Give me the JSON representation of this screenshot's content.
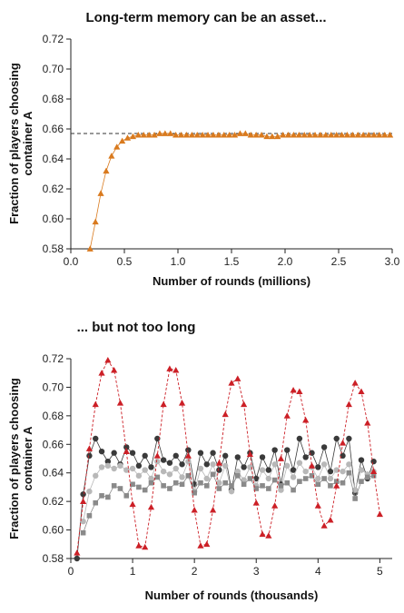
{
  "colors": {
    "orange": "#d97a1e",
    "red": "#cc1f26",
    "dark": "#3a3a3a",
    "light": "#b8b8b8",
    "mid": "#8a8a8a",
    "reference": "#333333"
  },
  "chart_data": [
    {
      "type": "line",
      "title": "Long-term memory can be an asset...",
      "xlabel": "Number of rounds (millions)",
      "ylabel": "Fraction of players choosing container A",
      "xlim": [
        0.0,
        3.0
      ],
      "ylim": [
        0.58,
        0.72
      ],
      "x_ticks": [
        "0.0",
        "0.5",
        "1.0",
        "1.5",
        "2.0",
        "2.5",
        "3.0"
      ],
      "y_ticks": [
        "0.58",
        "0.60",
        "0.62",
        "0.64",
        "0.66",
        "0.68",
        "0.70",
        "0.72"
      ],
      "x_tick_values": [
        0,
        0.5,
        1.0,
        1.5,
        2.0,
        2.5,
        3.0
      ],
      "y_tick_values": [
        0.58,
        0.6,
        0.62,
        0.64,
        0.66,
        0.68,
        0.7,
        0.72
      ],
      "reference_line": {
        "y": 0.657,
        "style": "dashed"
      },
      "series": [
        {
          "marker": "triangle",
          "color": "#d97a1e",
          "x": [
            0.18,
            0.23,
            0.28,
            0.33,
            0.38,
            0.43,
            0.48,
            0.53,
            0.58,
            0.63,
            0.68,
            0.73,
            0.78,
            0.83,
            0.88,
            0.93,
            0.98,
            1.03,
            1.08,
            1.13,
            1.18,
            1.23,
            1.28,
            1.33,
            1.38,
            1.43,
            1.48,
            1.53,
            1.58,
            1.63,
            1.68,
            1.73,
            1.78,
            1.83,
            1.88,
            1.93,
            1.98,
            2.03,
            2.08,
            2.13,
            2.18,
            2.23,
            2.28,
            2.33,
            2.38,
            2.43,
            2.48,
            2.53,
            2.58,
            2.63,
            2.68,
            2.73,
            2.78,
            2.83,
            2.88,
            2.93,
            2.98
          ],
          "y": [
            0.58,
            0.598,
            0.617,
            0.632,
            0.642,
            0.648,
            0.652,
            0.654,
            0.655,
            0.656,
            0.656,
            0.656,
            0.656,
            0.657,
            0.657,
            0.657,
            0.656,
            0.656,
            0.656,
            0.656,
            0.656,
            0.656,
            0.656,
            0.656,
            0.656,
            0.656,
            0.656,
            0.656,
            0.657,
            0.657,
            0.656,
            0.656,
            0.656,
            0.655,
            0.655,
            0.655,
            0.656,
            0.656,
            0.656,
            0.656,
            0.656,
            0.656,
            0.656,
            0.656,
            0.656,
            0.656,
            0.656,
            0.656,
            0.656,
            0.656,
            0.656,
            0.656,
            0.656,
            0.656,
            0.656,
            0.656,
            0.656
          ]
        }
      ]
    },
    {
      "type": "line",
      "title": "... but not too long",
      "xlabel": "Number of rounds (thousands)",
      "ylabel": "Fraction of players choosing container A",
      "xlim": [
        0,
        5.2
      ],
      "ylim": [
        0.58,
        0.72
      ],
      "x_ticks": [
        "0",
        "1",
        "2",
        "3",
        "4",
        "5"
      ],
      "y_ticks": [
        "0.58",
        "0.60",
        "0.62",
        "0.64",
        "0.66",
        "0.68",
        "0.70",
        "0.72"
      ],
      "x_tick_values": [
        0,
        1,
        2,
        3,
        4,
        5
      ],
      "y_tick_values": [
        0.58,
        0.6,
        0.62,
        0.64,
        0.66,
        0.68,
        0.7,
        0.72
      ],
      "series": [
        {
          "marker": "triangle",
          "color": "#cc1f26",
          "line": "dashed",
          "x": [
            0.1,
            0.2,
            0.3,
            0.4,
            0.5,
            0.6,
            0.7,
            0.8,
            0.9,
            1.0,
            1.1,
            1.2,
            1.3,
            1.4,
            1.5,
            1.6,
            1.7,
            1.8,
            1.9,
            2.0,
            2.1,
            2.2,
            2.3,
            2.4,
            2.5,
            2.6,
            2.7,
            2.8,
            2.9,
            3.0,
            3.1,
            3.2,
            3.3,
            3.4,
            3.5,
            3.6,
            3.7,
            3.8,
            3.9,
            4.0,
            4.1,
            4.2,
            4.3,
            4.4,
            4.5,
            4.6,
            4.7,
            4.8,
            4.9,
            5.0
          ],
          "y": [
            0.584,
            0.62,
            0.657,
            0.688,
            0.71,
            0.719,
            0.712,
            0.689,
            0.655,
            0.618,
            0.589,
            0.588,
            0.616,
            0.652,
            0.688,
            0.713,
            0.712,
            0.689,
            0.652,
            0.614,
            0.589,
            0.59,
            0.614,
            0.647,
            0.681,
            0.703,
            0.706,
            0.688,
            0.653,
            0.619,
            0.597,
            0.596,
            0.617,
            0.65,
            0.68,
            0.698,
            0.697,
            0.677,
            0.645,
            0.617,
            0.603,
            0.607,
            0.631,
            0.661,
            0.688,
            0.703,
            0.697,
            0.675,
            0.641,
            0.611
          ]
        },
        {
          "marker": "circle",
          "color": "#3a3a3a",
          "line": "solid",
          "x": [
            0.1,
            0.2,
            0.3,
            0.4,
            0.5,
            0.6,
            0.7,
            0.8,
            0.9,
            1.0,
            1.1,
            1.2,
            1.3,
            1.4,
            1.5,
            1.6,
            1.7,
            1.8,
            1.9,
            2.0,
            2.1,
            2.2,
            2.3,
            2.4,
            2.5,
            2.6,
            2.7,
            2.8,
            2.9,
            3.0,
            3.1,
            3.2,
            3.3,
            3.4,
            3.5,
            3.6,
            3.7,
            3.8,
            3.9,
            4.0,
            4.1,
            4.2,
            4.3,
            4.4,
            4.5,
            4.6,
            4.7,
            4.8,
            4.9
          ],
          "y": [
            0.58,
            0.625,
            0.652,
            0.664,
            0.655,
            0.648,
            0.654,
            0.646,
            0.658,
            0.654,
            0.645,
            0.652,
            0.644,
            0.664,
            0.649,
            0.647,
            0.652,
            0.646,
            0.656,
            0.632,
            0.654,
            0.646,
            0.654,
            0.642,
            0.652,
            0.628,
            0.651,
            0.644,
            0.654,
            0.636,
            0.651,
            0.642,
            0.656,
            0.632,
            0.656,
            0.642,
            0.664,
            0.651,
            0.654,
            0.644,
            0.658,
            0.641,
            0.664,
            0.652,
            0.664,
            0.626,
            0.649,
            0.636,
            0.648
          ]
        },
        {
          "marker": "circle",
          "color": "#b8b8b8",
          "line": "solid",
          "x": [
            0.2,
            0.3,
            0.4,
            0.5,
            0.6,
            0.7,
            0.8,
            0.9,
            1.0,
            1.1,
            1.2,
            1.3,
            1.4,
            1.5,
            1.6,
            1.7,
            1.8,
            1.9,
            2.0,
            2.1,
            2.2,
            2.3,
            2.4,
            2.5,
            2.6,
            2.7,
            2.8,
            2.9,
            3.0,
            3.1,
            3.2,
            3.3,
            3.4,
            3.5,
            3.6,
            3.7,
            3.8,
            3.9,
            4.0,
            4.1,
            4.2,
            4.3,
            4.4,
            4.5,
            4.6,
            4.7,
            4.8,
            4.9
          ],
          "y": [
            0.606,
            0.627,
            0.638,
            0.644,
            0.645,
            0.643,
            0.645,
            0.642,
            0.643,
            0.638,
            0.642,
            0.636,
            0.648,
            0.641,
            0.639,
            0.643,
            0.637,
            0.648,
            0.627,
            0.643,
            0.636,
            0.646,
            0.633,
            0.645,
            0.627,
            0.641,
            0.635,
            0.644,
            0.631,
            0.642,
            0.636,
            0.646,
            0.628,
            0.645,
            0.637,
            0.647,
            0.641,
            0.644,
            0.636,
            0.646,
            0.636,
            0.642,
            0.641,
            0.646,
            0.628,
            0.642,
            0.639,
            0.641
          ]
        },
        {
          "marker": "square",
          "color": "#8a8a8a",
          "line": "solid",
          "x": [
            0.2,
            0.3,
            0.4,
            0.5,
            0.6,
            0.7,
            0.8,
            0.9,
            1.0,
            1.1,
            1.2,
            1.3,
            1.4,
            1.5,
            1.6,
            1.7,
            1.8,
            1.9,
            2.0,
            2.1,
            2.2,
            2.3,
            2.4,
            2.5,
            2.6,
            2.7,
            2.8,
            2.9,
            3.0,
            3.1,
            3.2,
            3.3,
            3.4,
            3.5,
            3.6,
            3.7,
            3.8,
            3.9,
            4.0,
            4.1,
            4.2,
            4.3,
            4.4,
            4.5,
            4.6,
            4.7,
            4.8,
            4.9
          ],
          "y": [
            0.598,
            0.61,
            0.619,
            0.624,
            0.623,
            0.631,
            0.629,
            0.624,
            0.632,
            0.63,
            0.628,
            0.633,
            0.637,
            0.631,
            0.629,
            0.633,
            0.632,
            0.638,
            0.626,
            0.633,
            0.631,
            0.639,
            0.629,
            0.633,
            0.631,
            0.638,
            0.632,
            0.636,
            0.629,
            0.631,
            0.629,
            0.635,
            0.631,
            0.633,
            0.628,
            0.634,
            0.636,
            0.638,
            0.632,
            0.636,
            0.631,
            0.634,
            0.633,
            0.64,
            0.622,
            0.634,
            0.637,
            0.638
          ]
        }
      ]
    }
  ]
}
